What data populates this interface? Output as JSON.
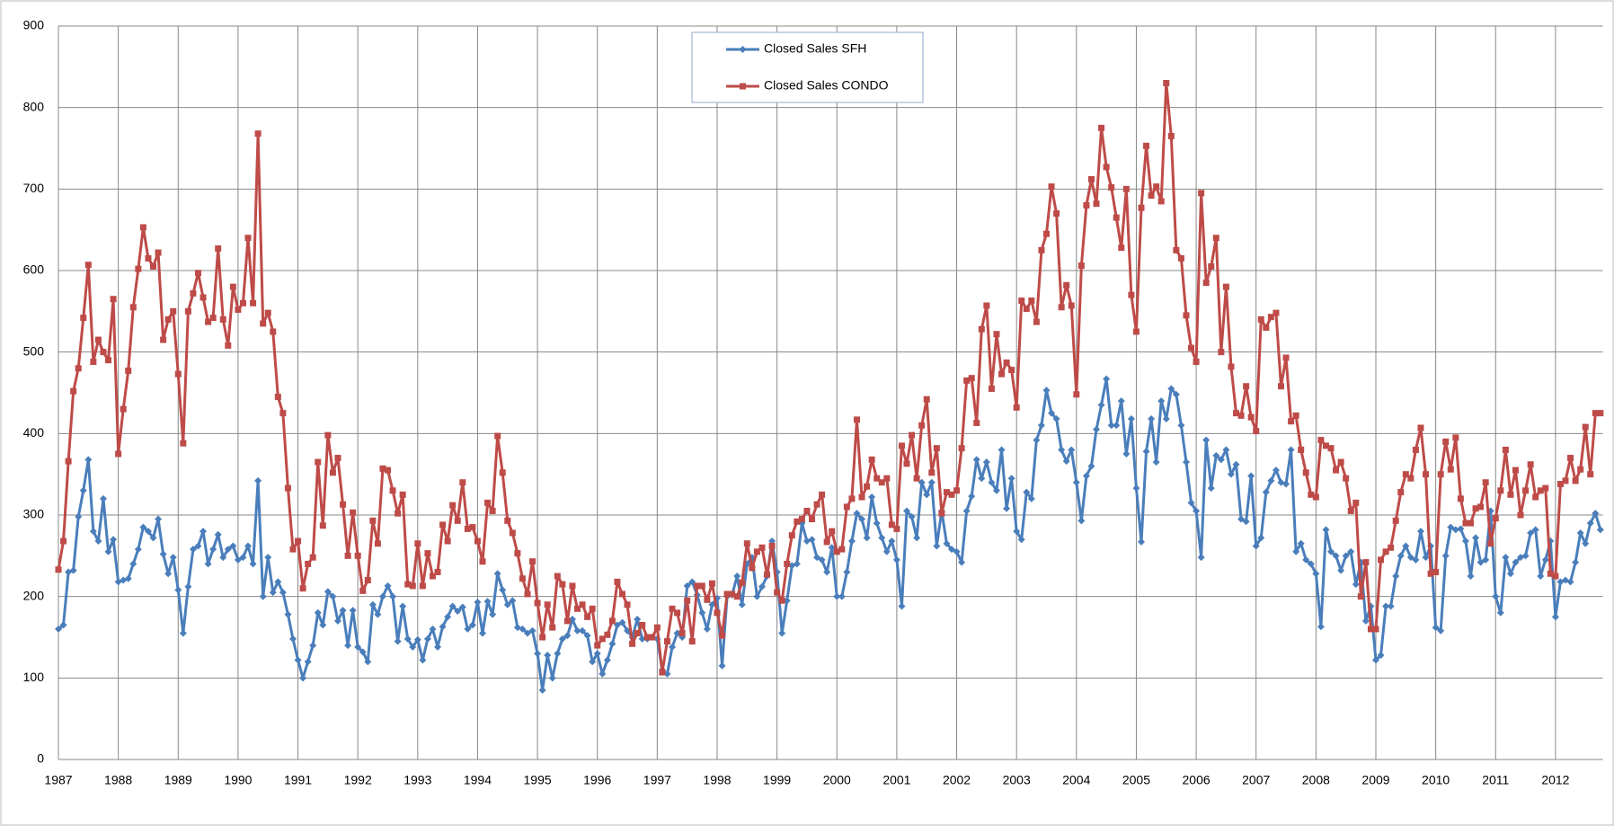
{
  "chart_data": {
    "type": "line",
    "categories": [
      "1987",
      null,
      null,
      null,
      null,
      null,
      null,
      null,
      null,
      null,
      null,
      null,
      "1988",
      null,
      null,
      null,
      null,
      null,
      null,
      null,
      null,
      null,
      null,
      null,
      "1989",
      null,
      null,
      null,
      null,
      null,
      null,
      null,
      null,
      null,
      null,
      null,
      "1990",
      null,
      null,
      null,
      null,
      null,
      null,
      null,
      null,
      null,
      null,
      null,
      "1991",
      null,
      null,
      null,
      null,
      null,
      null,
      null,
      null,
      null,
      null,
      null,
      "1992",
      null,
      null,
      null,
      null,
      null,
      null,
      null,
      null,
      null,
      null,
      null,
      "1993",
      null,
      null,
      null,
      null,
      null,
      null,
      null,
      null,
      null,
      null,
      null,
      "1994",
      null,
      null,
      null,
      null,
      null,
      null,
      null,
      null,
      null,
      null,
      null,
      "1995",
      null,
      null,
      null,
      null,
      null,
      null,
      null,
      null,
      null,
      null,
      null,
      "1996",
      null,
      null,
      null,
      null,
      null,
      null,
      null,
      null,
      null,
      null,
      null,
      "1997",
      null,
      null,
      null,
      null,
      null,
      null,
      null,
      null,
      null,
      null,
      null,
      "1998",
      null,
      null,
      null,
      null,
      null,
      null,
      null,
      null,
      null,
      null,
      null,
      "1999",
      null,
      null,
      null,
      null,
      null,
      null,
      null,
      null,
      null,
      null,
      null,
      "2000",
      null,
      null,
      null,
      null,
      null,
      null,
      null,
      null,
      null,
      null,
      null,
      "2001",
      null,
      null,
      null,
      null,
      null,
      null,
      null,
      null,
      null,
      null,
      null,
      "2002",
      null,
      null,
      null,
      null,
      null,
      null,
      null,
      null,
      null,
      null,
      null,
      "2003",
      null,
      null,
      null,
      null,
      null,
      null,
      null,
      null,
      null,
      null,
      null,
      "2004",
      null,
      null,
      null,
      null,
      null,
      null,
      null,
      null,
      null,
      null,
      null,
      "2005",
      null,
      null,
      null,
      null,
      null,
      null,
      null,
      null,
      null,
      null,
      null,
      "2006",
      null,
      null,
      null,
      null,
      null,
      null,
      null,
      null,
      null,
      null,
      null,
      "2007",
      null,
      null,
      null,
      null,
      null,
      null,
      null,
      null,
      null,
      null,
      null,
      "2008",
      null,
      null,
      null,
      null,
      null,
      null,
      null,
      null,
      null,
      null,
      null,
      "2009",
      null,
      null,
      null,
      null,
      null,
      null,
      null,
      null,
      null,
      null,
      null,
      "2010",
      null,
      null,
      null,
      null,
      null,
      null,
      null,
      null,
      null,
      null,
      null,
      "2011",
      null,
      null,
      null,
      null,
      null,
      null,
      null,
      null,
      null,
      null,
      null,
      "2012",
      null,
      null,
      null,
      null,
      null,
      null,
      null,
      null,
      null
    ],
    "series": [
      {
        "name": "Closed Sales SFH",
        "color": "#4a7ebb",
        "marker": "diamond",
        "values": [
          160,
          165,
          230,
          232,
          298,
          330,
          368,
          280,
          268,
          320,
          255,
          270,
          218,
          220,
          222,
          240,
          258,
          285,
          280,
          272,
          295,
          252,
          228,
          248,
          208,
          155,
          212,
          258,
          262,
          280,
          240,
          258,
          276,
          248,
          258,
          262,
          245,
          248,
          262,
          240,
          342,
          200,
          248,
          205,
          218,
          205,
          178,
          148,
          122,
          100,
          120,
          140,
          180,
          165,
          206,
          200,
          170,
          183,
          140,
          183,
          138,
          132,
          120,
          190,
          178,
          200,
          213,
          200,
          145,
          188,
          148,
          138,
          147,
          122,
          148,
          160,
          138,
          163,
          175,
          188,
          182,
          187,
          160,
          165,
          193,
          155,
          194,
          178,
          228,
          208,
          190,
          195,
          162,
          160,
          155,
          158,
          130,
          85,
          128,
          100,
          130,
          148,
          152,
          172,
          158,
          158,
          152,
          120,
          130,
          105,
          122,
          142,
          165,
          168,
          158,
          150,
          172,
          148,
          148,
          150,
          148,
          110,
          105,
          138,
          155,
          150,
          213,
          218,
          202,
          180,
          160,
          190,
          198,
          115,
          200,
          202,
          225,
          190,
          240,
          248,
          200,
          212,
          225,
          268,
          230,
          155,
          195,
          238,
          240,
          290,
          268,
          270,
          248,
          245,
          230,
          260,
          200,
          200,
          230,
          268,
          302,
          295,
          272,
          322,
          290,
          272,
          255,
          268,
          245,
          188,
          305,
          298,
          272,
          340,
          325,
          340,
          262,
          305,
          265,
          258,
          255,
          242,
          305,
          323,
          368,
          345,
          365,
          340,
          330,
          380,
          308,
          345,
          280,
          270,
          328,
          320,
          392,
          410,
          453,
          425,
          418,
          380,
          366,
          380,
          340,
          293,
          348,
          360,
          405,
          435,
          467,
          410,
          410,
          440,
          375,
          418,
          333,
          267,
          378,
          418,
          365,
          440,
          418,
          455,
          448,
          410,
          365,
          315,
          305,
          248,
          392,
          333,
          373,
          368,
          380,
          350,
          362,
          295,
          292,
          348,
          262,
          272,
          328,
          342,
          355,
          340,
          338,
          380,
          255,
          265,
          245,
          240,
          228,
          163,
          282,
          255,
          250,
          232,
          250,
          255,
          215,
          242,
          170,
          188,
          122,
          128,
          188,
          188,
          225,
          250,
          262,
          248,
          245,
          280,
          248,
          262,
          162,
          158,
          250,
          285,
          282,
          283,
          268,
          225,
          272,
          242,
          245,
          305,
          200,
          180,
          248,
          228,
          242,
          248,
          250,
          278,
          282,
          225,
          245,
          268,
          175,
          218,
          220,
          218,
          242,
          278,
          265,
          290,
          302,
          282
        ]
      },
      {
        "name": "Closed Sales CONDO",
        "color": "#be4b48",
        "marker": "square",
        "values": [
          233,
          268,
          366,
          452,
          480,
          542,
          607,
          488,
          515,
          500,
          490,
          565,
          375,
          430,
          477,
          555,
          602,
          653,
          615,
          605,
          622,
          515,
          540,
          550,
          473,
          388,
          550,
          572,
          597,
          567,
          537,
          542,
          627,
          540,
          508,
          580,
          552,
          560,
          640,
          560,
          768,
          535,
          548,
          525,
          445,
          425,
          333,
          258,
          268,
          210,
          240,
          248,
          365,
          287,
          398,
          352,
          370,
          313,
          250,
          303,
          250,
          207,
          220,
          293,
          265,
          357,
          355,
          330,
          302,
          325,
          215,
          213,
          265,
          213,
          253,
          225,
          230,
          288,
          268,
          312,
          293,
          340,
          283,
          285,
          268,
          243,
          315,
          305,
          397,
          352,
          293,
          278,
          253,
          222,
          203,
          243,
          192,
          150,
          190,
          162,
          225,
          215,
          170,
          213,
          185,
          190,
          175,
          185,
          140,
          148,
          153,
          170,
          218,
          203,
          190,
          142,
          155,
          165,
          150,
          150,
          162,
          107,
          145,
          185,
          180,
          155,
          195,
          145,
          213,
          213,
          196,
          216,
          180,
          152,
          203,
          203,
          200,
          217,
          265,
          235,
          255,
          260,
          227,
          262,
          205,
          195,
          240,
          275,
          292,
          295,
          305,
          295,
          313,
          325,
          267,
          280,
          255,
          258,
          310,
          320,
          417,
          322,
          335,
          368,
          345,
          340,
          345,
          288,
          283,
          385,
          363,
          398,
          345,
          410,
          442,
          352,
          382,
          302,
          328,
          325,
          330,
          382,
          465,
          468,
          413,
          528,
          557,
          455,
          522,
          473,
          487,
          478,
          432,
          563,
          553,
          563,
          537,
          625,
          645,
          703,
          670,
          555,
          582,
          557,
          448,
          606,
          680,
          712,
          682,
          775,
          727,
          702,
          665,
          628,
          700,
          570,
          525,
          677,
          753,
          692,
          703,
          685,
          830,
          765,
          625,
          615,
          545,
          505,
          488,
          695,
          585,
          605,
          640,
          500,
          580,
          482,
          425,
          422,
          458,
          420,
          403,
          540,
          530,
          543,
          548,
          458,
          493,
          415,
          422,
          380,
          352,
          325,
          322,
          392,
          385,
          382,
          355,
          365,
          345,
          305,
          315,
          200,
          242,
          160,
          160,
          245,
          255,
          260,
          293,
          328,
          350,
          345,
          380,
          407,
          350,
          228,
          230,
          350,
          390,
          356,
          395,
          320,
          290,
          290,
          308,
          310,
          340,
          265,
          296,
          330,
          380,
          325,
          355,
          300,
          330,
          362,
          322,
          330,
          333,
          228,
          225,
          338,
          342,
          370,
          342,
          356,
          408,
          350,
          425,
          425
        ]
      }
    ],
    "ylim": [
      0,
      900
    ],
    "yticks": [
      0,
      100,
      200,
      300,
      400,
      500,
      600,
      700,
      800,
      900
    ],
    "grid": true,
    "legend": "top"
  }
}
